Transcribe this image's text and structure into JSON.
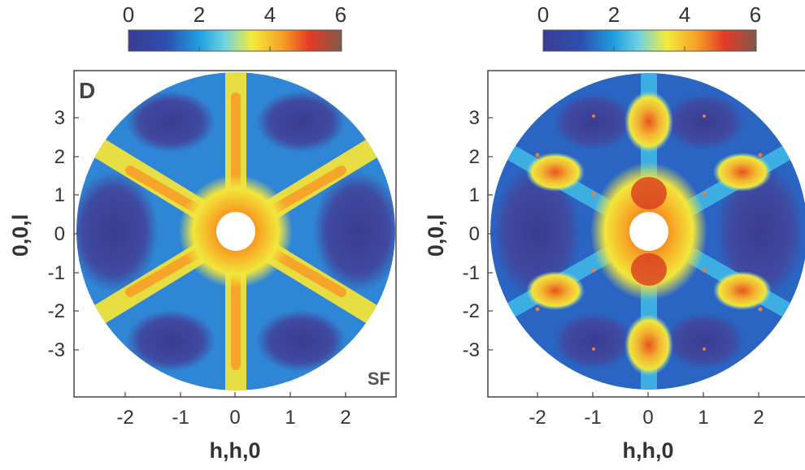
{
  "figure": {
    "panels": [
      {
        "panel_letter": "D",
        "corner_label": "SF",
        "colorbar": {
          "ticks": [
            "0",
            "2",
            "4",
            "6"
          ],
          "min": 0,
          "max": 6
        },
        "xlabel": "h,h,0",
        "ylabel": "0,0,l",
        "xticks": [
          "-2",
          "-1",
          "0",
          "1",
          "2"
        ],
        "yticks": [
          "3",
          "2",
          "1",
          "0",
          "-1",
          "-2",
          "-3"
        ]
      },
      {
        "panel_letter": "",
        "corner_label": "",
        "colorbar": {
          "ticks": [
            "0",
            "2",
            "4",
            "6"
          ],
          "min": 0,
          "max": 6
        },
        "xlabel": "h,h,0",
        "ylabel": "0,0,l",
        "xticks": [
          "-2",
          "-1",
          "0",
          "1",
          "2"
        ],
        "yticks": [
          "3",
          "2",
          "1",
          "0",
          "-1",
          "-2",
          "-3"
        ]
      }
    ]
  },
  "chart_data": [
    {
      "type": "heatmap",
      "xlabel": "h,h,0",
      "ylabel": "0,0,l",
      "xlim": [
        -2.9,
        2.9
      ],
      "ylim": [
        -4.2,
        4.2
      ],
      "colorbar_range": [
        0,
        6
      ],
      "annotations": [
        "D",
        "SF"
      ]
    },
    {
      "type": "heatmap",
      "xlabel": "h,h,0",
      "ylabel": "0,0,l",
      "xlim": [
        -2.9,
        2.9
      ],
      "ylim": [
        -4.2,
        4.2
      ],
      "colorbar_range": [
        0,
        6
      ],
      "annotations": []
    }
  ]
}
